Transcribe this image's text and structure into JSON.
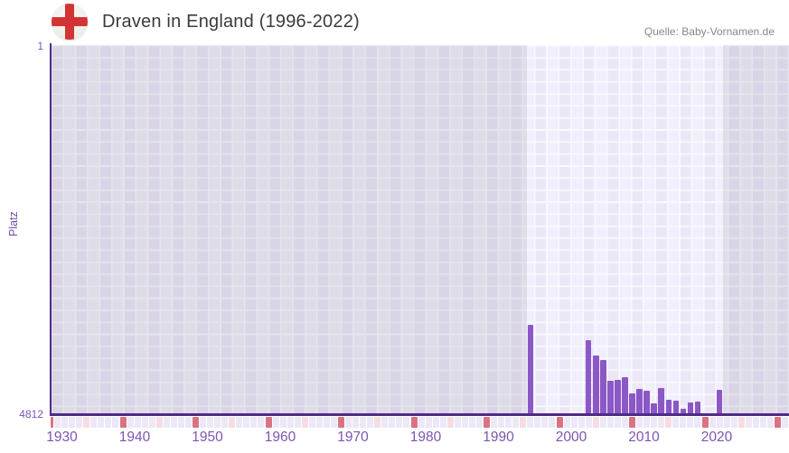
{
  "header": {
    "title": "Draven in England (1996-2022)",
    "source": "Quelle: Baby-Vornamen.de",
    "flag_icon": "england-flag"
  },
  "y_axis": {
    "title": "Platz",
    "top_tick": "1",
    "bottom_tick": "4812"
  },
  "x_axis": {
    "decade_ticks": [
      "1930",
      "1940",
      "1950",
      "1960",
      "1970",
      "1980",
      "1990",
      "2000",
      "2010",
      "2020"
    ]
  },
  "chart_data": {
    "type": "bar",
    "title": "Draven in England (1996-2022)",
    "ylabel": "Platz",
    "y_axis_inverted": true,
    "ylim": [
      1,
      4812
    ],
    "x_range": [
      1930,
      2031
    ],
    "highlight_year_range": [
      1996,
      2022
    ],
    "grid": true,
    "legend": "none",
    "note": "years without a bar have no ranking data: 1930-1995, 1997-2003, 2020, 2021",
    "series": [
      {
        "name": "Platz (rank of name Draven in England)",
        "points": [
          {
            "year": 1996,
            "rank": 3660
          },
          {
            "year": 2004,
            "rank": 3858
          },
          {
            "year": 2005,
            "rank": 4053
          },
          {
            "year": 2006,
            "rank": 4116
          },
          {
            "year": 2007,
            "rank": 4387
          },
          {
            "year": 2008,
            "rank": 4375
          },
          {
            "year": 2009,
            "rank": 4340
          },
          {
            "year": 2010,
            "rank": 4551
          },
          {
            "year": 2011,
            "rank": 4496
          },
          {
            "year": 2012,
            "rank": 4515
          },
          {
            "year": 2013,
            "rank": 4679
          },
          {
            "year": 2014,
            "rank": 4486
          },
          {
            "year": 2015,
            "rank": 4636
          },
          {
            "year": 2016,
            "rank": 4648
          },
          {
            "year": 2017,
            "rank": 4753
          },
          {
            "year": 2018,
            "rank": 4674
          },
          {
            "year": 2019,
            "rank": 4655
          },
          {
            "year": 2022,
            "rank": 4499
          }
        ]
      }
    ]
  },
  "colors": {
    "bar": "#8b58c6",
    "axis_line": "#4f2b87",
    "tick_label": "#7d55b0",
    "title_text": "#3b3b3b",
    "source_text": "#878787",
    "flag_cross_red": "#d23334",
    "strip_year": "#ece8f7",
    "strip_half_decade": "#f6dde3",
    "strip_decade": "#db7282",
    "plot_cell_light": "#f2effc",
    "plot_cell_alt": "#ebe7f7",
    "dim_overlay": "rgba(99,92,117,0.13)"
  }
}
